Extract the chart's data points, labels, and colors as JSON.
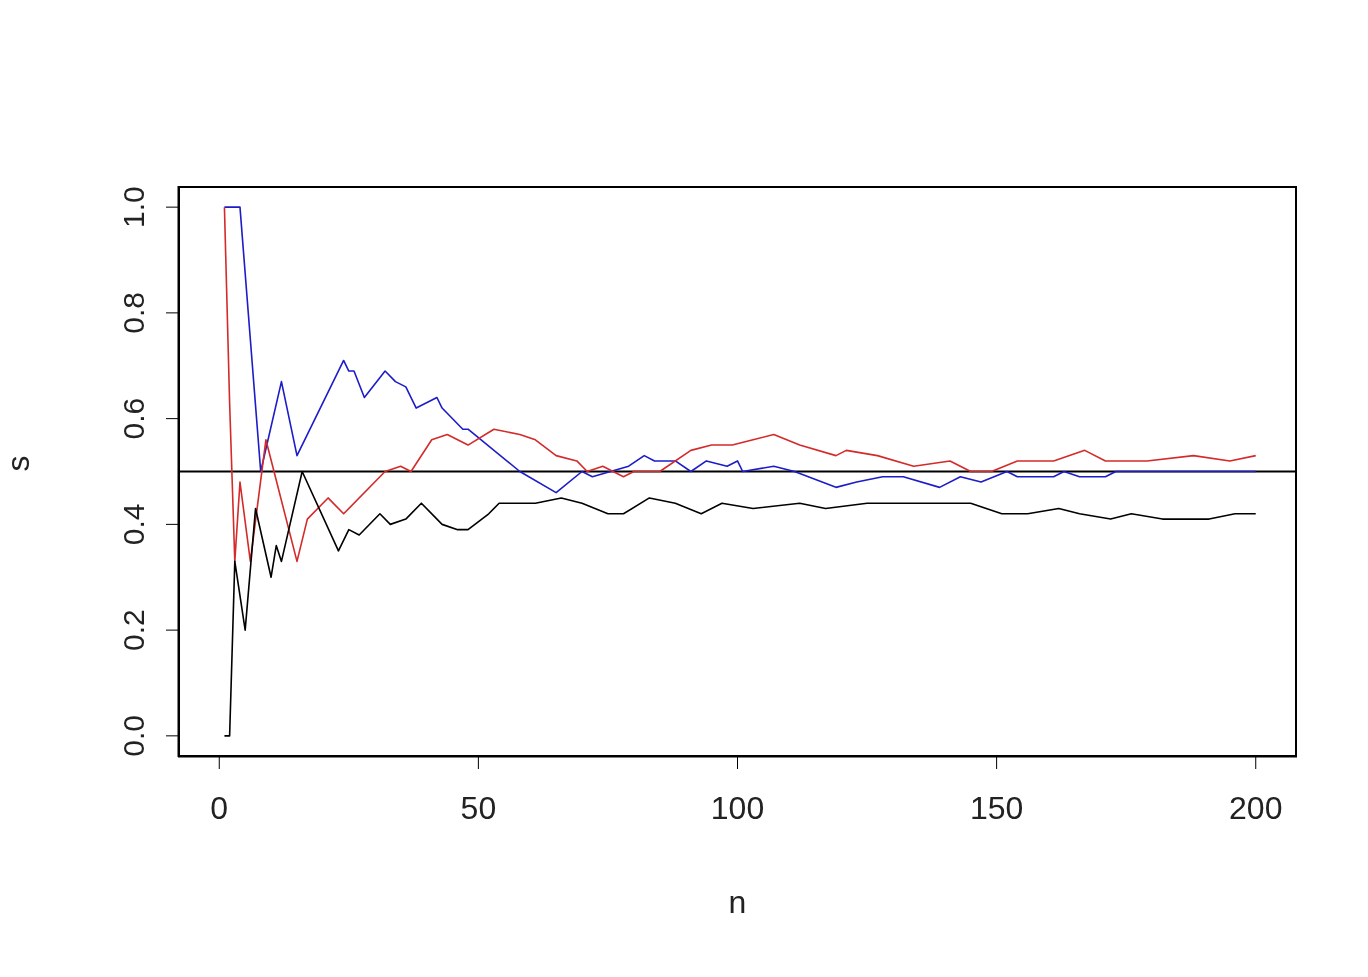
{
  "chart_data": {
    "type": "line",
    "xlabel": "n",
    "ylabel": "s",
    "marker": "none",
    "xlim": [
      -7.96,
      207.96
    ],
    "xticks": [
      0,
      50,
      100,
      150,
      200
    ],
    "ylim": [
      -0.04,
      1.04
    ],
    "yticks": [
      {
        "value": 0,
        "label": "0.0"
      },
      {
        "value": 0.2,
        "label": "0.2"
      },
      {
        "value": 0.4,
        "label": "0.4"
      },
      {
        "value": 0.6,
        "label": "0.6"
      },
      {
        "value": 0.8,
        "label": "0.8"
      },
      {
        "value": 1,
        "label": "1.0"
      }
    ],
    "ref_lines": [
      {
        "axis": "y",
        "value": 0.5,
        "color": "#000000"
      }
    ],
    "series": [
      {
        "color": "#1c1cc8",
        "x": [
          1,
          4,
          8,
          12,
          15,
          24,
          25,
          26,
          28,
          32,
          34,
          36,
          38,
          42,
          43,
          47,
          48,
          58,
          65,
          70,
          72,
          79,
          82,
          84,
          88,
          91,
          94,
          98,
          100,
          101,
          107,
          111,
          119,
          123,
          128,
          132,
          139,
          143,
          147,
          152,
          154,
          161,
          163,
          166,
          171,
          173,
          200
        ],
        "values": [
          1.0,
          1.0,
          0.5,
          0.67,
          0.53,
          0.71,
          0.69,
          0.69,
          0.64,
          0.69,
          0.67,
          0.66,
          0.62,
          0.64,
          0.62,
          0.58,
          0.58,
          0.5,
          0.46,
          0.5,
          0.49,
          0.51,
          0.53,
          0.52,
          0.52,
          0.5,
          0.52,
          0.51,
          0.52,
          0.5,
          0.51,
          0.5,
          0.47,
          0.48,
          0.49,
          0.49,
          0.47,
          0.49,
          0.48,
          0.5,
          0.49,
          0.49,
          0.5,
          0.49,
          0.49,
          0.5,
          0.5
        ]
      },
      {
        "color": "#d42a2a",
        "x": [
          1,
          2,
          3,
          4,
          6,
          9,
          15,
          17,
          21,
          24,
          32,
          35,
          37,
          41,
          44,
          48,
          53,
          58,
          61,
          65,
          69,
          71,
          74,
          78,
          80,
          85,
          91,
          95,
          99,
          103,
          107,
          112,
          119,
          121,
          127,
          134,
          141,
          145,
          149,
          154,
          158,
          161,
          167,
          171,
          179,
          188,
          195,
          200
        ],
        "values": [
          1.0,
          0.63,
          0.33,
          0.48,
          0.33,
          0.56,
          0.33,
          0.41,
          0.45,
          0.42,
          0.5,
          0.51,
          0.5,
          0.56,
          0.57,
          0.55,
          0.58,
          0.57,
          0.56,
          0.53,
          0.52,
          0.5,
          0.51,
          0.49,
          0.5,
          0.5,
          0.54,
          0.55,
          0.55,
          0.56,
          0.57,
          0.55,
          0.53,
          0.54,
          0.53,
          0.51,
          0.52,
          0.5,
          0.5,
          0.52,
          0.52,
          0.52,
          0.54,
          0.52,
          0.52,
          0.53,
          0.52,
          0.53
        ]
      },
      {
        "color": "#000000",
        "x": [
          1,
          2,
          3,
          5,
          7,
          10,
          11,
          12,
          16,
          23,
          25,
          27,
          31,
          33,
          36,
          39,
          43,
          46,
          48,
          52,
          54,
          58,
          61,
          66,
          70,
          75,
          78,
          83,
          88,
          93,
          97,
          103,
          112,
          117,
          125,
          133,
          142,
          145,
          151,
          156,
          162,
          166,
          172,
          176,
          182,
          191,
          196,
          200
        ],
        "values": [
          0.0,
          0.0,
          0.33,
          0.2,
          0.43,
          0.3,
          0.36,
          0.33,
          0.5,
          0.35,
          0.39,
          0.38,
          0.42,
          0.4,
          0.41,
          0.44,
          0.4,
          0.39,
          0.39,
          0.42,
          0.44,
          0.44,
          0.44,
          0.45,
          0.44,
          0.42,
          0.42,
          0.45,
          0.44,
          0.42,
          0.44,
          0.43,
          0.44,
          0.43,
          0.44,
          0.44,
          0.44,
          0.44,
          0.42,
          0.42,
          0.43,
          0.42,
          0.41,
          0.42,
          0.41,
          0.41,
          0.42,
          0.42
        ]
      }
    ]
  }
}
